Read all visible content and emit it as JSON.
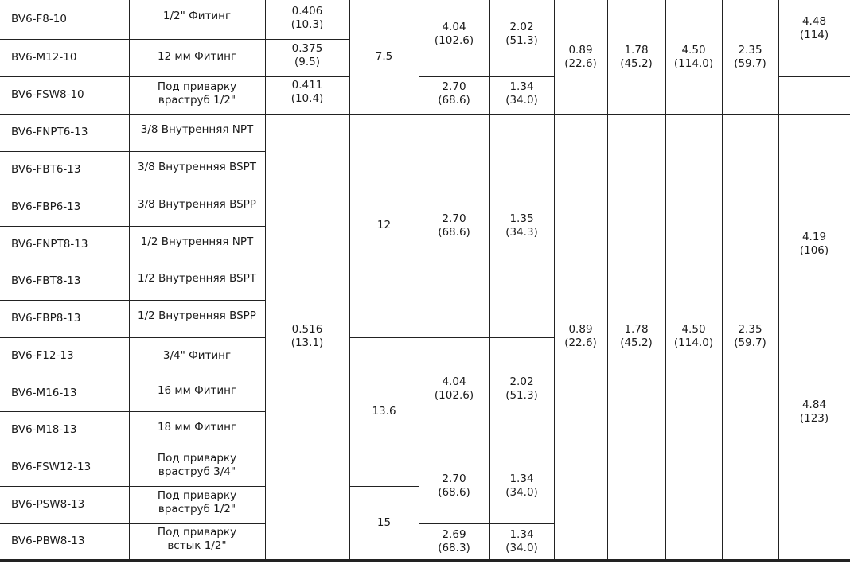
{
  "dash": "——",
  "models": [
    "BV6-F8-10",
    "BV6-M12-10",
    "BV6-FSW8-10",
    "BV6-FNPT6-13",
    "BV6-FBT6-13",
    "BV6-FBP6-13",
    "BV6-FNPT8-13",
    "BV6-FBT8-13",
    "BV6-FBP8-13",
    "BV6-F12-13",
    "BV6-M16-13",
    "BV6-M18-13",
    "BV6-FSW12-13",
    "BV6-PSW8-13",
    "BV6-PBW8-13"
  ],
  "connections": [
    [
      "1/2\" Фитинг"
    ],
    [
      "12 мм Фитинг"
    ],
    [
      "Под приварку",
      "враструб 1/2\""
    ],
    [
      "3/8 Внутренняя NPT"
    ],
    [
      "3/8 Внутренняя BSPT"
    ],
    [
      "3/8 Внутренняя BSPP"
    ],
    [
      "1/2 Внутренняя NPT"
    ],
    [
      "1/2 Внутренняя BSPT"
    ],
    [
      "1/2 Внутренняя BSPP"
    ],
    [
      "3/4\" Фитинг"
    ],
    [
      "16 мм Фитинг"
    ],
    [
      "18 мм Фитинг"
    ],
    [
      "Под приварку",
      "враструб 3/4\""
    ],
    [
      "Под приварку",
      "враструб 1/2\""
    ],
    [
      "Под приварку",
      "встык 1/2\""
    ]
  ],
  "orifice": {
    "r0": [
      "0.406",
      "(10.3)"
    ],
    "r1": [
      "0.375",
      "(9.5)"
    ],
    "r2": [
      "0.411",
      "(10.4)"
    ],
    "g2": [
      "0.516",
      "(13.1)"
    ]
  },
  "cv": {
    "g1": "7.5",
    "g2a": "12",
    "g2b": "13.6",
    "g2c": "15"
  },
  "dimA": {
    "g1a": [
      "4.04",
      "(102.6)"
    ],
    "g1b": [
      "2.70",
      "(68.6)"
    ],
    "g2a": [
      "2.70",
      "(68.6)"
    ],
    "g2b": [
      "4.04",
      "(102.6)"
    ],
    "g2c": [
      "2.70",
      "(68.6)"
    ],
    "g2d": [
      "2.69",
      "(68.3)"
    ]
  },
  "dimB": {
    "g1a": [
      "2.02",
      "(51.3)"
    ],
    "g1b": [
      "1.34",
      "(34.0)"
    ],
    "g2a": [
      "1.35",
      "(34.3)"
    ],
    "g2b": [
      "2.02",
      "(51.3)"
    ],
    "g2c": [
      "1.34",
      "(34.0)"
    ],
    "g2d": [
      "1.34",
      "(34.0)"
    ]
  },
  "dimC": {
    "g1": [
      "0.89",
      "(22.6)"
    ],
    "g2": [
      "0.89",
      "(22.6)"
    ]
  },
  "dimD": {
    "g1": [
      "1.78",
      "(45.2)"
    ],
    "g2": [
      "1.78",
      "(45.2)"
    ]
  },
  "dimE": {
    "g1": [
      "4.50",
      "(114.0)"
    ],
    "g2": [
      "4.50",
      "(114.0)"
    ]
  },
  "dimF": {
    "g1": [
      "2.35",
      "(59.7)"
    ],
    "g2": [
      "2.35",
      "(59.7)"
    ]
  },
  "dimG": {
    "g1": [
      "4.48",
      "(114)"
    ],
    "g2a": [
      "4.19",
      "(106)"
    ],
    "g2b": [
      "4.84",
      "(123)"
    ]
  }
}
